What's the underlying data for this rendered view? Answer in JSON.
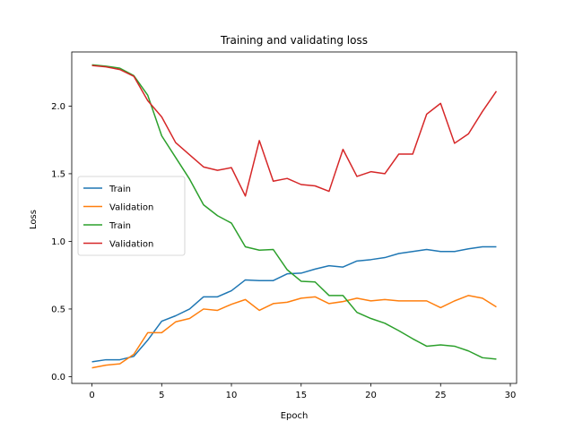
{
  "chart_data": {
    "type": "line",
    "title": "Training and validating loss",
    "xlabel": "Epoch",
    "ylabel": "Loss",
    "xlim": [
      -1.45,
      30.45
    ],
    "ylim": [
      -0.05,
      2.4
    ],
    "xticks": [
      0,
      5,
      10,
      15,
      20,
      25,
      30
    ],
    "yticks": [
      0.0,
      0.5,
      1.0,
      1.5,
      2.0
    ],
    "ytick_labels": [
      "0.0",
      "0.5",
      "1.0",
      "1.5",
      "2.0"
    ],
    "grid": false,
    "legend_position": "center-left",
    "x": [
      0,
      1,
      2,
      3,
      4,
      5,
      6,
      7,
      8,
      9,
      10,
      11,
      12,
      13,
      14,
      15,
      16,
      17,
      18,
      19,
      20,
      21,
      22,
      23,
      24,
      25,
      26,
      27,
      28,
      29
    ],
    "series": [
      {
        "name": "Train",
        "color": "#1f77b4",
        "values": [
          0.11,
          0.125,
          0.125,
          0.15,
          0.27,
          0.41,
          0.45,
          0.5,
          0.59,
          0.59,
          0.635,
          0.715,
          0.71,
          0.71,
          0.76,
          0.765,
          0.795,
          0.82,
          0.81,
          0.855,
          0.865,
          0.88,
          0.91,
          0.925,
          0.94,
          0.925,
          0.925,
          0.945,
          0.96,
          0.96
        ]
      },
      {
        "name": "Validation",
        "color": "#ff7f0e",
        "values": [
          0.065,
          0.085,
          0.095,
          0.165,
          0.325,
          0.325,
          0.405,
          0.43,
          0.5,
          0.49,
          0.535,
          0.57,
          0.49,
          0.54,
          0.55,
          0.58,
          0.59,
          0.54,
          0.555,
          0.58,
          0.56,
          0.57,
          0.56,
          0.56,
          0.56,
          0.51,
          0.56,
          0.6,
          0.58,
          0.515
        ]
      },
      {
        "name": "Train",
        "color": "#2ca02c",
        "values": [
          2.305,
          2.295,
          2.28,
          2.225,
          2.08,
          1.78,
          1.62,
          1.46,
          1.27,
          1.19,
          1.135,
          0.96,
          0.935,
          0.94,
          0.79,
          0.705,
          0.7,
          0.6,
          0.6,
          0.475,
          0.43,
          0.395,
          0.34,
          0.28,
          0.225,
          0.235,
          0.225,
          0.19,
          0.14,
          0.13
        ]
      },
      {
        "name": "Validation",
        "color": "#d62728",
        "values": [
          2.3,
          2.29,
          2.27,
          2.22,
          2.04,
          1.92,
          1.73,
          1.64,
          1.55,
          1.525,
          1.545,
          1.335,
          1.745,
          1.445,
          1.465,
          1.42,
          1.41,
          1.37,
          1.68,
          1.48,
          1.515,
          1.5,
          1.645,
          1.645,
          1.94,
          2.02,
          1.725,
          1.795,
          1.96,
          2.11
        ]
      }
    ]
  }
}
